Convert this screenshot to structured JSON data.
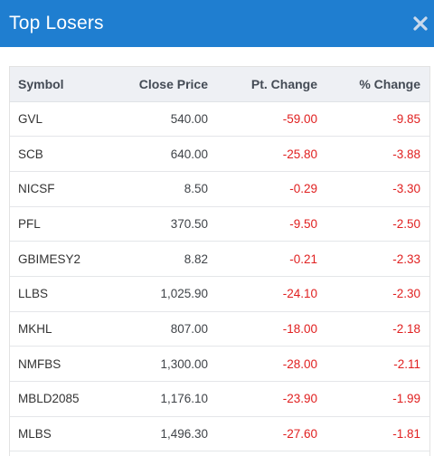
{
  "modal": {
    "title": "Top Losers",
    "close_icon": "close-icon"
  },
  "table": {
    "headers": [
      "Symbol",
      "Close Price",
      "Pt. Change",
      "% Change"
    ],
    "rows": [
      {
        "symbol": "GVL",
        "close": "540.00",
        "pt": "-59.00",
        "pct": "-9.85"
      },
      {
        "symbol": "SCB",
        "close": "640.00",
        "pt": "-25.80",
        "pct": "-3.88"
      },
      {
        "symbol": "NICSF",
        "close": "8.50",
        "pt": "-0.29",
        "pct": "-3.30"
      },
      {
        "symbol": "PFL",
        "close": "370.50",
        "pt": "-9.50",
        "pct": "-2.50"
      },
      {
        "symbol": "GBIMESY2",
        "close": "8.82",
        "pt": "-0.21",
        "pct": "-2.33"
      },
      {
        "symbol": "LLBS",
        "close": "1,025.90",
        "pt": "-24.10",
        "pct": "-2.30"
      },
      {
        "symbol": "MKHL",
        "close": "807.00",
        "pt": "-18.00",
        "pct": "-2.18"
      },
      {
        "symbol": "NMFBS",
        "close": "1,300.00",
        "pt": "-28.00",
        "pct": "-2.11"
      },
      {
        "symbol": "MBLD2085",
        "close": "1,176.10",
        "pt": "-23.90",
        "pct": "-1.99"
      },
      {
        "symbol": "MLBS",
        "close": "1,496.30",
        "pt": "-27.60",
        "pct": "-1.81"
      }
    ]
  },
  "colors": {
    "header_bg": "#1f7ed0",
    "negative": "#e02020",
    "table_header_bg": "#eef0f4"
  }
}
